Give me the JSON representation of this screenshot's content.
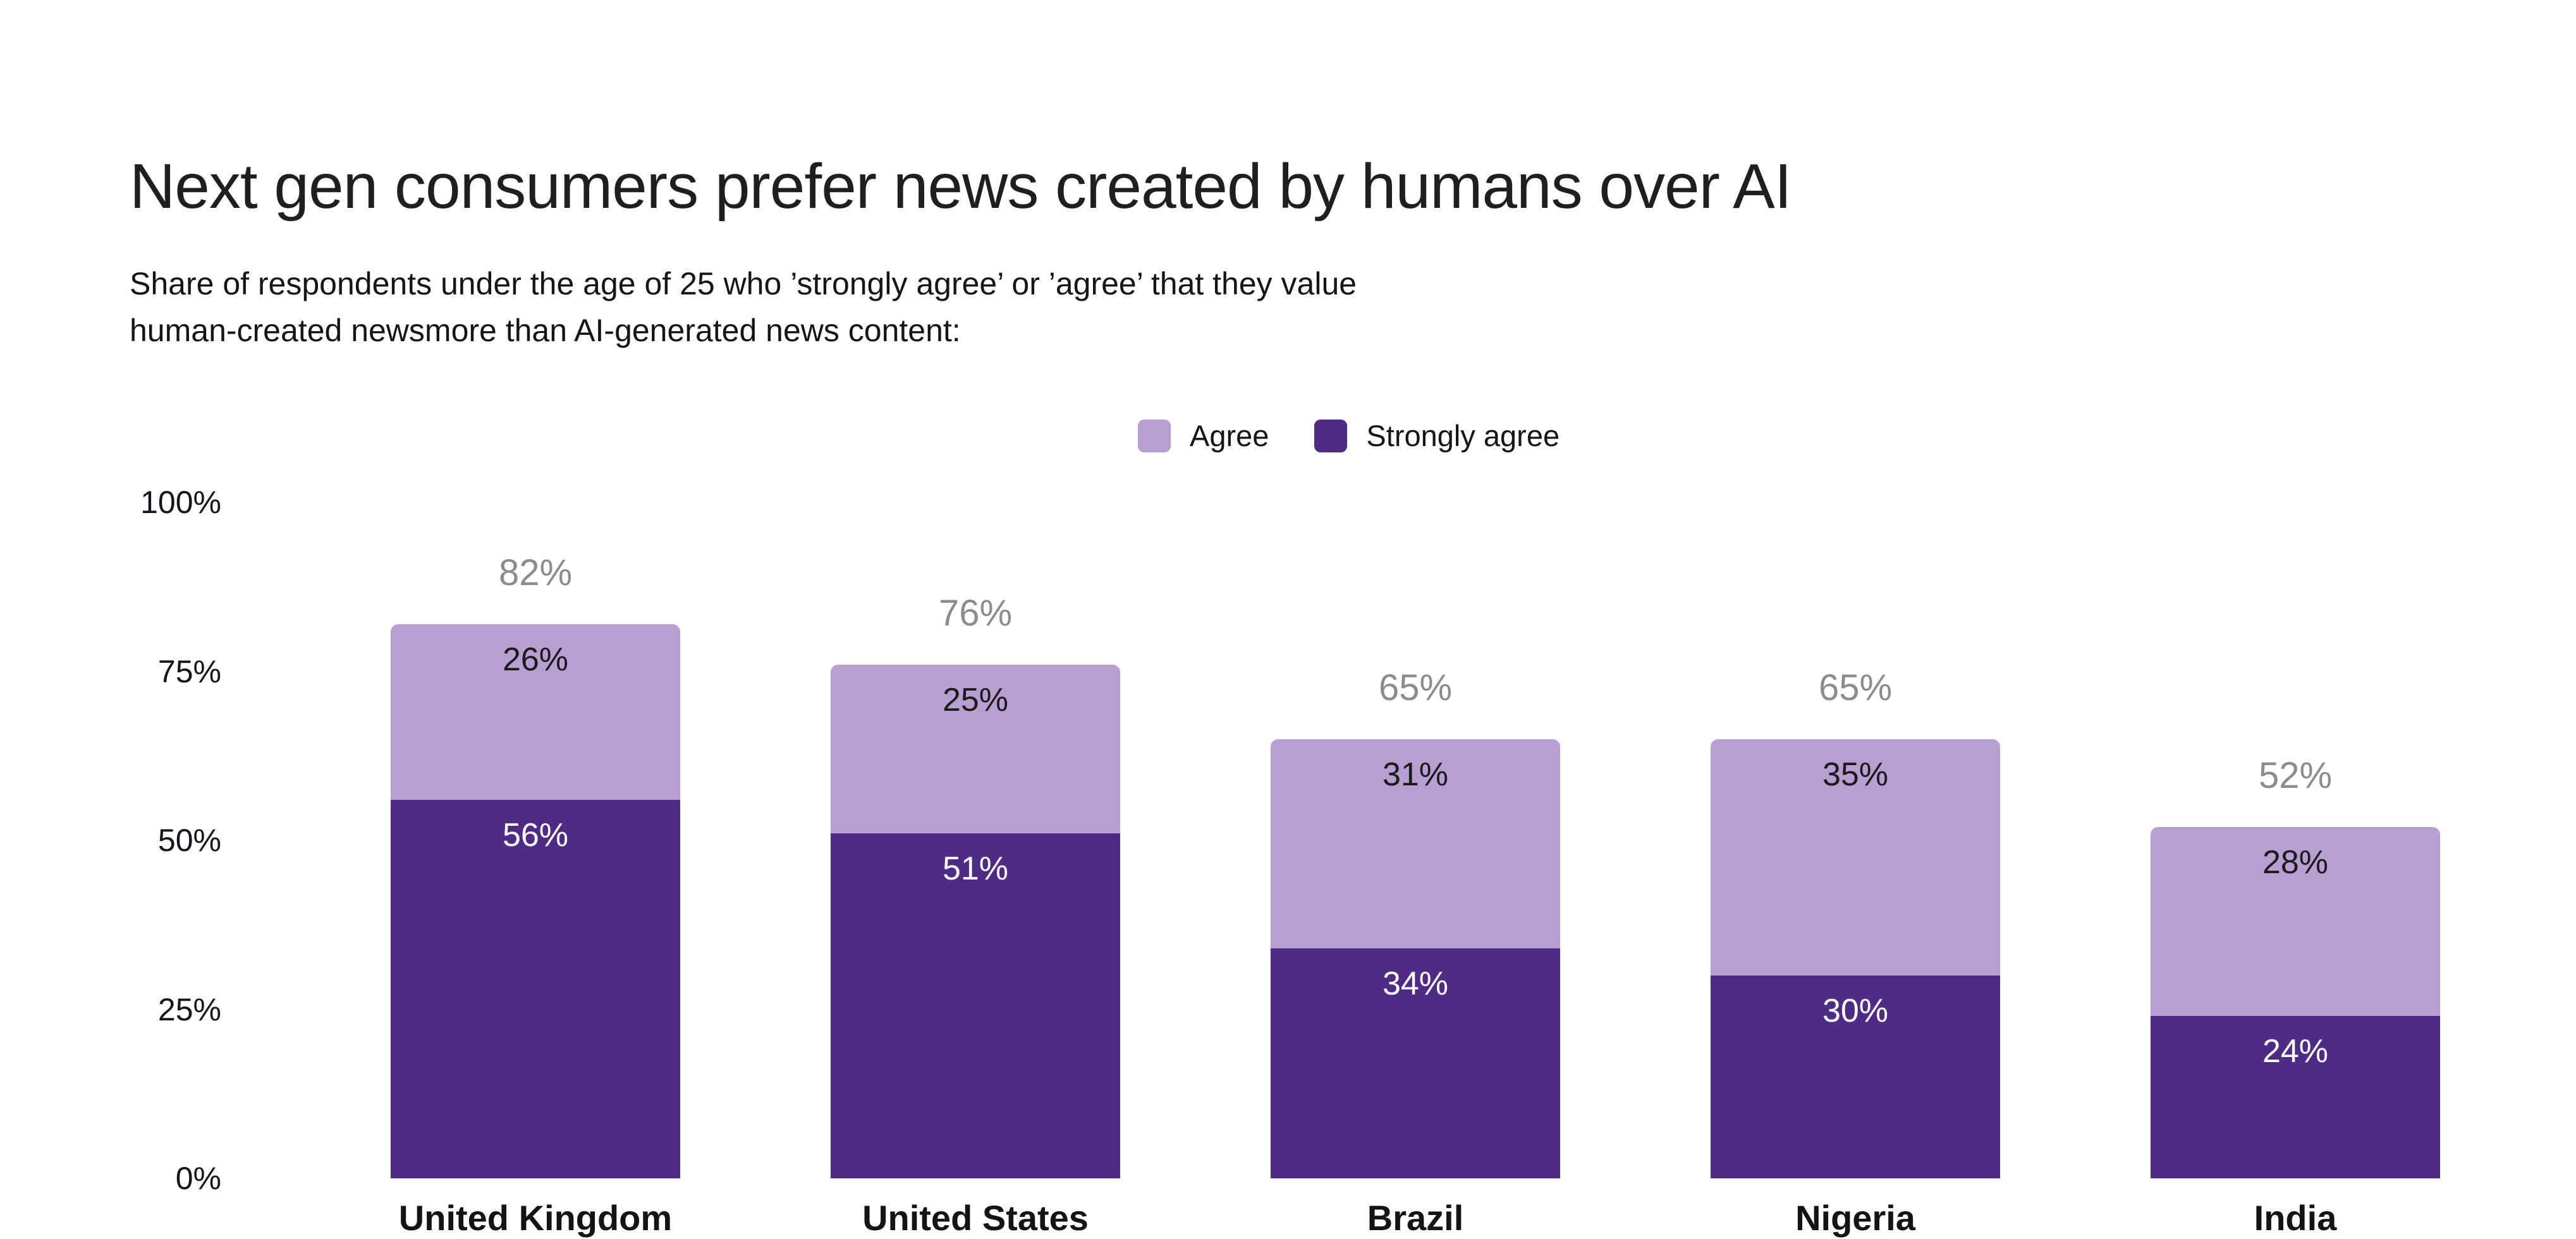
{
  "header": {
    "title": "Next gen consumers prefer news created by humans over AI",
    "subtitle_line1": "Share of respondents under the age of 25 who ’strongly agree’ or ’agree’ that they value",
    "subtitle_line2": "human-created newsmore than AI-generated news content:"
  },
  "colors": {
    "background": "#ffffff",
    "title_text": "#211e1f",
    "subtitle_text": "#171415",
    "tick_text": "#13161b",
    "country_text": "#161314",
    "total_label_text": "#8c8c8c",
    "agree_fill": "#b79fd2",
    "strongly_agree_fill": "#4e2c85"
  },
  "chart_data": {
    "type": "bar",
    "stacked": true,
    "series_order": "top-to-bottom",
    "title": "Next gen consumers prefer news created by humans over AI",
    "categories": [
      "United Kingdom",
      "United States",
      "Brazil",
      "Nigeria",
      "India"
    ],
    "series": [
      {
        "name": "Agree",
        "color": "#b79fd2",
        "label_color": "#1b1b1b",
        "values": [
          26,
          25,
          31,
          35,
          28
        ]
      },
      {
        "name": "Strongly agree",
        "color": "#4e2c85",
        "label_color": "#ffffff",
        "values": [
          56,
          51,
          34,
          30,
          24
        ]
      }
    ],
    "totals": {
      "values": [
        82,
        76,
        65,
        65,
        52
      ],
      "color": "#8c8c8c"
    },
    "value_suffix": "%",
    "ylim": [
      0,
      100
    ],
    "yticks": [
      100,
      75,
      50,
      25,
      0
    ],
    "grid": false,
    "axis_lines": false,
    "legend_position": "top-center",
    "legend_entries": [
      "Agree",
      "Strongly agree"
    ]
  }
}
